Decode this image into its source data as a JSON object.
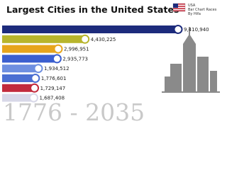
{
  "logo": [
    "USA",
    "Bar Chart Races",
    "By Hifa"
  ],
  "chart_data": {
    "type": "bar",
    "orientation": "horizontal",
    "title": "Largest Cities in the United States",
    "categories": [
      null,
      null,
      null,
      null,
      null,
      null,
      null,
      null
    ],
    "values": [
      9410940,
      4430225,
      2996951,
      2935773,
      1934512,
      1776601,
      1729147,
      1687408
    ],
    "value_labels": [
      "9,410,940",
      "4,430,225",
      "2,996,951",
      "2,935,773",
      "1,934,512",
      "1,776,601",
      "1,729,147",
      "1,687,408"
    ],
    "colors": [
      "#1d2b7c",
      "#b8b52c",
      "#e7a51c",
      "#3b5fcf",
      "#6e8fe0",
      "#4b6fd2",
      "#c22a3c",
      "#d8d8e8"
    ],
    "period_label": "1776 - 2035"
  }
}
